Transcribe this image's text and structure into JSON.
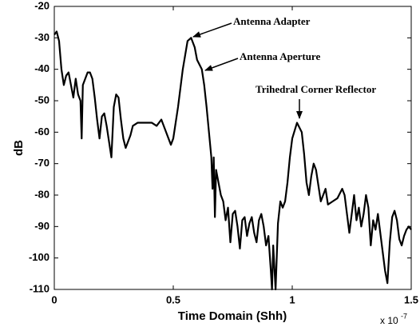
{
  "chart_data": {
    "type": "line",
    "xlabel": "Time Domain (Shh)",
    "ylabel": "dB",
    "x_multiplier": {
      "base": "x 10",
      "exponent": "-7"
    },
    "annotations": [
      "Antenna Adapter",
      "Antenna Aperture",
      "Trihedral Corner Reflector"
    ],
    "xlim": [
      0,
      1.5
    ],
    "xticks": [
      0,
      0.5,
      1,
      1.5
    ],
    "ylim": [
      -110,
      -20
    ],
    "yticks": [
      -20,
      -30,
      -40,
      -50,
      -60,
      -70,
      -80,
      -90,
      -100,
      -110
    ],
    "x": [
      0,
      0.01,
      0.02,
      0.03,
      0.04,
      0.05,
      0.06,
      0.07,
      0.08,
      0.09,
      0.1,
      0.11,
      0.115,
      0.12,
      0.13,
      0.14,
      0.15,
      0.16,
      0.17,
      0.18,
      0.19,
      0.2,
      0.21,
      0.22,
      0.23,
      0.24,
      0.245,
      0.25,
      0.26,
      0.27,
      0.28,
      0.29,
      0.3,
      0.31,
      0.32,
      0.33,
      0.35,
      0.37,
      0.39,
      0.41,
      0.43,
      0.45,
      0.47,
      0.49,
      0.5,
      0.52,
      0.54,
      0.56,
      0.575,
      0.59,
      0.6,
      0.62,
      0.63,
      0.64,
      0.65,
      0.66,
      0.665,
      0.67,
      0.675,
      0.68,
      0.7,
      0.71,
      0.72,
      0.73,
      0.74,
      0.75,
      0.76,
      0.77,
      0.78,
      0.79,
      0.8,
      0.81,
      0.82,
      0.83,
      0.84,
      0.85,
      0.86,
      0.87,
      0.88,
      0.89,
      0.9,
      0.91,
      0.915,
      0.92,
      0.93,
      0.94,
      0.95,
      0.96,
      0.97,
      0.98,
      0.99,
      1.0,
      1.02,
      1.04,
      1.05,
      1.06,
      1.07,
      1.08,
      1.09,
      1.1,
      1.11,
      1.12,
      1.13,
      1.14,
      1.15,
      1.17,
      1.19,
      1.21,
      1.22,
      1.23,
      1.24,
      1.25,
      1.26,
      1.27,
      1.28,
      1.29,
      1.3,
      1.31,
      1.32,
      1.33,
      1.34,
      1.35,
      1.36,
      1.37,
      1.38,
      1.39,
      1.4,
      1.41,
      1.42,
      1.43,
      1.44,
      1.45,
      1.46,
      1.47,
      1.48,
      1.49,
      1.5
    ],
    "series": [
      {
        "color": "#000000",
        "values": [
          -29,
          -28,
          -31,
          -40,
          -45,
          -42,
          -41,
          -45,
          -49,
          -43,
          -48,
          -50,
          -62,
          -45,
          -43,
          -41,
          -41,
          -43,
          -49,
          -56,
          -62,
          -55,
          -54,
          -58,
          -63,
          -68,
          -60,
          -52,
          -48,
          -49,
          -56,
          -62,
          -65,
          -63,
          -61,
          -58,
          -57,
          -57,
          -57,
          -57,
          -58,
          -56,
          -60,
          -64,
          -62,
          -52,
          -40,
          -31,
          -30,
          -33,
          -37,
          -40,
          -45,
          -52,
          -60,
          -68,
          -78,
          -68,
          -87,
          -72,
          -80,
          -82,
          -88,
          -84,
          -95,
          -86,
          -85,
          -90,
          -97,
          -88,
          -87,
          -93,
          -89,
          -87,
          -92,
          -95,
          -88,
          -86,
          -90,
          -96,
          -93,
          -104,
          -110,
          -96,
          -110,
          -89,
          -82,
          -84,
          -82,
          -76,
          -68,
          -62,
          -57,
          -60,
          -67,
          -76,
          -80,
          -74,
          -70,
          -72,
          -77,
          -82,
          -80,
          -78,
          -83,
          -82,
          -81,
          -78,
          -80,
          -86,
          -92,
          -86,
          -80,
          -88,
          -84,
          -90,
          -86,
          -80,
          -84,
          -96,
          -88,
          -91,
          -86,
          -92,
          -98,
          -104,
          -108,
          -95,
          -87,
          -85,
          -88,
          -94,
          -96,
          -93,
          -91,
          -90,
          -91
        ]
      }
    ]
  }
}
